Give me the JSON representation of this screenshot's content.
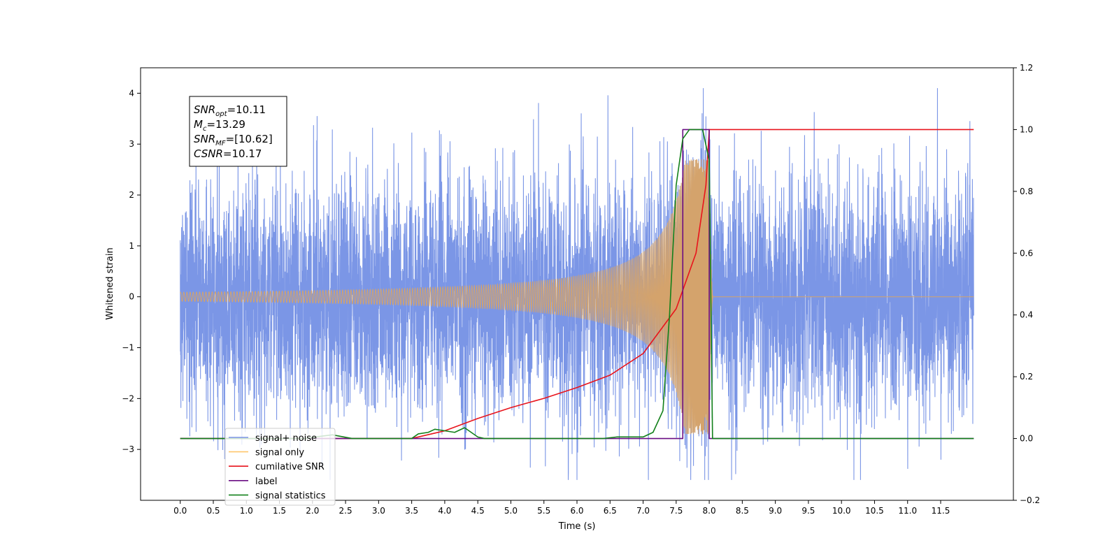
{
  "chart_data": {
    "type": "line",
    "xlabel": "Time (s)",
    "ylabel": "Whitened strain",
    "xlim": [
      -0.6,
      12.6
    ],
    "ylim": [
      -4.0,
      4.5
    ],
    "y2lim": [
      -0.2,
      1.2
    ],
    "xticks": [
      0.0,
      0.5,
      1.0,
      1.5,
      2.0,
      2.5,
      3.0,
      3.5,
      4.0,
      4.5,
      5.0,
      5.5,
      6.0,
      6.5,
      7.0,
      7.5,
      8.0,
      8.5,
      9.0,
      9.5,
      10.0,
      10.5,
      11.0,
      11.5
    ],
    "xtick_labels": [
      "0.0",
      "0.5",
      "1.0",
      "1.5",
      "2.0",
      "2.5",
      "3.0",
      "3.5",
      "4.0",
      "4.5",
      "5.0",
      "5.5",
      "6.0",
      "6.5",
      "7.0",
      "7.5",
      "8.0",
      "8.5",
      "9.0",
      "9.5",
      "10.0",
      "10.5",
      "11.0",
      "11.5"
    ],
    "yticks": [
      -3,
      -2,
      -1,
      0,
      1,
      2,
      3,
      4
    ],
    "ytick_labels": [
      "−3",
      "−2",
      "−1",
      "0",
      "1",
      "2",
      "3",
      "4"
    ],
    "y2ticks": [
      -0.2,
      0.0,
      0.2,
      0.4,
      0.6,
      0.8,
      1.0,
      1.2
    ],
    "y2tick_labels": [
      "−0.2",
      "0.0",
      "0.2",
      "0.4",
      "0.6",
      "0.8",
      "1.0",
      "1.2"
    ],
    "grid": false,
    "legend_position": "lower-left",
    "annotation": {
      "lines": [
        {
          "base": "SNR",
          "sub": "opt",
          "rest": "=10.11"
        },
        {
          "base": "M",
          "sub": "c",
          "rest": "=13.29"
        },
        {
          "base": "SNR",
          "sub": "MF",
          "rest": "=[10.62]"
        },
        {
          "base": "CSNR",
          "sub": "",
          "rest": "=10.17"
        }
      ]
    },
    "series": [
      {
        "name": "signal+ noise",
        "color": "#7b96e6",
        "axis": "left",
        "t_start": 0.0,
        "t_end": 12.0,
        "noise_rms": 1.15,
        "range": [
          -3.6,
          4.1
        ]
      },
      {
        "name": "signal only",
        "color": "#d4a36c",
        "axis": "left",
        "chirp_start": 0.0,
        "merger_time": 8.0,
        "ringdown_end": 8.06,
        "peak_amplitude": 2.7
      },
      {
        "name": "cumilative SNR",
        "color": "#e8141c",
        "axis": "right",
        "x": [
          0.0,
          3.5,
          4.0,
          4.5,
          5.0,
          5.5,
          6.0,
          6.5,
          7.0,
          7.5,
          7.8,
          7.95,
          8.0,
          12.0
        ],
        "y": [
          0.0,
          0.0,
          0.025,
          0.065,
          0.1,
          0.13,
          0.165,
          0.205,
          0.275,
          0.42,
          0.6,
          0.82,
          1.0,
          1.0
        ]
      },
      {
        "name": "label",
        "color": "#6a0d83",
        "axis": "right",
        "x": [
          0.0,
          7.6,
          7.6,
          8.0,
          8.0,
          12.0
        ],
        "y": [
          0.0,
          0.0,
          1.0,
          1.0,
          0.0,
          0.0
        ]
      },
      {
        "name": "signal statistics",
        "color": "#12801a",
        "axis": "right",
        "x": [
          0.0,
          1.9,
          2.0,
          2.3,
          2.4,
          2.6,
          3.5,
          3.6,
          3.75,
          3.85,
          4.0,
          4.15,
          4.3,
          4.5,
          4.6,
          6.4,
          6.6,
          7.0,
          7.15,
          7.3,
          7.4,
          7.5,
          7.6,
          7.7,
          7.8,
          7.9,
          8.0,
          8.05,
          12.0
        ],
        "y": [
          0.0,
          0.0,
          0.004,
          0.012,
          0.008,
          0.0,
          0.0,
          0.015,
          0.02,
          0.03,
          0.025,
          0.02,
          0.035,
          0.005,
          0.0,
          0.0,
          0.005,
          0.005,
          0.02,
          0.09,
          0.4,
          0.82,
          0.97,
          1.0,
          1.0,
          1.0,
          0.9,
          0.0,
          0.0
        ]
      }
    ],
    "legend": [
      {
        "label": "signal+ noise",
        "color": "#7b96e6"
      },
      {
        "label": "signal only",
        "color": "#ffc66b"
      },
      {
        "label": "cumilative SNR",
        "color": "#e8141c"
      },
      {
        "label": "label",
        "color": "#6a0d83"
      },
      {
        "label": "signal statistics",
        "color": "#12801a"
      }
    ]
  }
}
